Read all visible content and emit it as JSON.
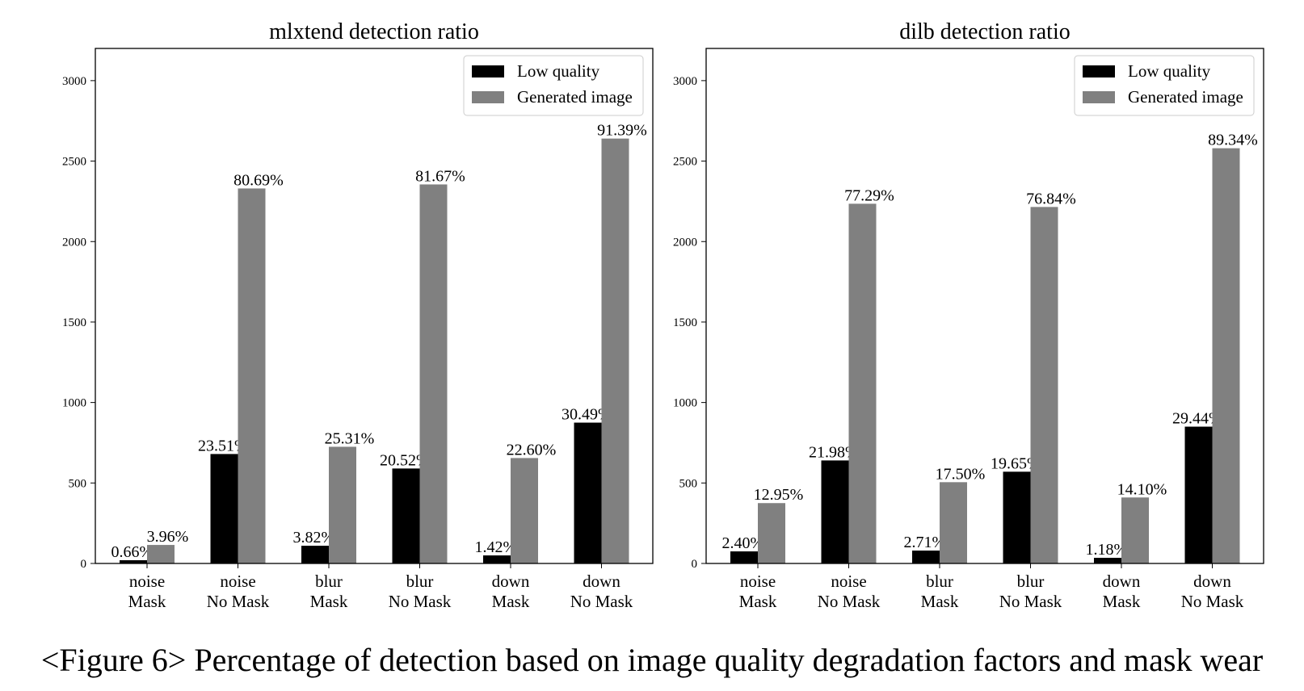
{
  "caption": "<Figure 6> Percentage of detection based on image quality degradation factors and mask wear",
  "colors": {
    "low_quality": "#000000",
    "generated_image": "#808080",
    "frame": "#000000"
  },
  "chart_data": [
    {
      "type": "bar",
      "title": "mlxtend detection ratio",
      "categories": [
        [
          "noise",
          "Mask"
        ],
        [
          "noise",
          "No Mask"
        ],
        [
          "blur",
          "Mask"
        ],
        [
          "blur",
          "No Mask"
        ],
        [
          "down",
          "Mask"
        ],
        [
          "down",
          "No Mask"
        ]
      ],
      "ylim": [
        0,
        3200
      ],
      "yticks": [
        0,
        500,
        1000,
        1500,
        2000,
        2500,
        3000
      ],
      "grid": false,
      "legend_position": "top-right",
      "series": [
        {
          "name": "Low quality",
          "color": "#000000",
          "values": [
            20,
            680,
            110,
            590,
            50,
            875
          ],
          "labels": [
            "0.66%",
            "23.51%",
            "3.82%",
            "20.52%",
            "1.42%",
            "30.49%"
          ]
        },
        {
          "name": "Generated image",
          "color": "#808080",
          "values": [
            115,
            2330,
            725,
            2355,
            655,
            2640
          ],
          "labels": [
            "3.96%",
            "80.69%",
            "25.31%",
            "81.67%",
            "22.60%",
            "91.39%"
          ]
        }
      ]
    },
    {
      "type": "bar",
      "title": "dilb detection ratio",
      "categories": [
        [
          "noise",
          "Mask"
        ],
        [
          "noise",
          "No Mask"
        ],
        [
          "blur",
          "Mask"
        ],
        [
          "blur",
          "No Mask"
        ],
        [
          "down",
          "Mask"
        ],
        [
          "down",
          "No Mask"
        ]
      ],
      "ylim": [
        0,
        3200
      ],
      "yticks": [
        0,
        500,
        1000,
        1500,
        2000,
        2500,
        3000
      ],
      "grid": false,
      "legend_position": "top-right",
      "series": [
        {
          "name": "Low quality",
          "color": "#000000",
          "values": [
            75,
            640,
            80,
            570,
            35,
            850
          ],
          "labels": [
            "2.40%",
            "21.98%",
            "2.71%",
            "19.65%",
            "1.18%",
            "29.44%"
          ]
        },
        {
          "name": "Generated image",
          "color": "#808080",
          "values": [
            375,
            2235,
            505,
            2215,
            410,
            2580
          ],
          "labels": [
            "12.95%",
            "77.29%",
            "17.50%",
            "76.84%",
            "14.10%",
            "89.34%"
          ]
        }
      ]
    }
  ]
}
